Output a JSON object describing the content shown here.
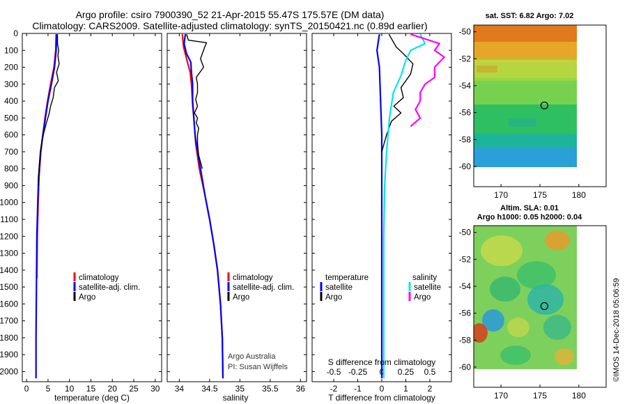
{
  "title_line1": "Argo profile: csiro 7900390_52 21-Apr-2015 55.47S 175.57E (DM data)",
  "title_line2": "Climatology: CARS2009. Satellite-adjusted climatology: synTS_20150421.nc (0.89d earlier)",
  "colors": {
    "climatology": "#ff0000",
    "satellite": "#0000ff",
    "argo": "#000000",
    "salinity_satellite": "#00e5ee",
    "salinity_argo": "#ff00ff"
  },
  "chart_data": [
    {
      "type": "line",
      "name": "temperature",
      "xlabel": "temperature (deg C)",
      "ylabel": "",
      "xlim": [
        -1,
        31.5
      ],
      "ylim": [
        2060,
        0
      ],
      "xticks": [
        0,
        5,
        10,
        15,
        20,
        25,
        30
      ],
      "yticks": [
        0,
        100,
        200,
        300,
        400,
        500,
        600,
        700,
        800,
        900,
        1000,
        1100,
        1200,
        1300,
        1400,
        1500,
        1600,
        1700,
        1800,
        1900,
        2000
      ],
      "legend": [
        "climatology",
        "satellite-adj. clim.",
        "Argo"
      ],
      "series": [
        {
          "name": "climatology",
          "color": "#ff0000",
          "points": [
            [
              6.9,
              5
            ],
            [
              6.8,
              100
            ],
            [
              6.4,
              200
            ],
            [
              5.6,
              300
            ],
            [
              4.9,
              400
            ],
            [
              4.3,
              500
            ],
            [
              3.8,
              600
            ],
            [
              3.3,
              700
            ],
            [
              2.9,
              850
            ],
            [
              2.7,
              1000
            ],
            [
              2.5,
              1200
            ],
            [
              2.4,
              1450
            ]
          ]
        },
        {
          "name": "satellite-adj. clim.",
          "color": "#0000ff",
          "points": [
            [
              7.0,
              5
            ],
            [
              6.9,
              100
            ],
            [
              6.5,
              200
            ],
            [
              5.8,
              300
            ],
            [
              5.0,
              400
            ],
            [
              4.4,
              500
            ],
            [
              3.8,
              600
            ],
            [
              3.3,
              700
            ],
            [
              2.8,
              850
            ],
            [
              2.6,
              1000
            ],
            [
              2.4,
              1200
            ],
            [
              2.3,
              1500
            ],
            [
              2.2,
              1800
            ],
            [
              2.2,
              2040
            ]
          ]
        },
        {
          "name": "Argo",
          "color": "#000000",
          "points": [
            [
              7.2,
              5
            ],
            [
              7.2,
              60
            ],
            [
              7.5,
              100
            ],
            [
              7.3,
              130
            ],
            [
              7.6,
              180
            ],
            [
              7.0,
              230
            ],
            [
              7.4,
              280
            ],
            [
              6.5,
              320
            ],
            [
              6.2,
              380
            ],
            [
              5.6,
              430
            ],
            [
              5.2,
              480
            ],
            [
              4.6,
              530
            ],
            [
              4.3,
              560
            ],
            [
              3.9,
              600
            ],
            [
              3.5,
              650
            ],
            [
              3.2,
              700
            ],
            [
              2.9,
              800
            ],
            [
              2.7,
              900
            ]
          ]
        }
      ]
    },
    {
      "type": "line",
      "name": "salinity",
      "xlabel": "salinity",
      "xlim": [
        33.8,
        36.1
      ],
      "ylim": [
        2060,
        0
      ],
      "xticks": [
        34,
        34.5,
        35,
        35.5,
        36
      ],
      "xtick_labels": [
        "34",
        "34.5",
        "35",
        "35.5",
        "36"
      ],
      "legend": [
        "climatology",
        "satellite-adj. clim.",
        "Argo"
      ],
      "series": [
        {
          "name": "climatology",
          "color": "#ff0000",
          "points": [
            [
              34.05,
              5
            ],
            [
              34.07,
              80
            ],
            [
              34.12,
              150
            ],
            [
              34.18,
              230
            ],
            [
              34.2,
              300
            ],
            [
              34.22,
              420
            ],
            [
              34.25,
              550
            ],
            [
              34.27,
              650
            ],
            [
              34.33,
              800
            ],
            [
              34.42,
              950
            ],
            [
              34.5,
              1100
            ],
            [
              34.57,
              1250
            ],
            [
              34.63,
              1400
            ],
            [
              34.68,
              1600
            ],
            [
              34.71,
              1800
            ],
            [
              34.72,
              2040
            ]
          ]
        },
        {
          "name": "satellite-adj. clim.",
          "color": "#0000ff",
          "points": [
            [
              34.1,
              5
            ],
            [
              34.08,
              60
            ],
            [
              34.12,
              120
            ],
            [
              34.19,
              170
            ],
            [
              34.2,
              230
            ],
            [
              34.22,
              300
            ],
            [
              34.22,
              400
            ],
            [
              34.24,
              500
            ],
            [
              34.26,
              600
            ],
            [
              34.3,
              700
            ],
            [
              34.35,
              800
            ],
            [
              34.42,
              950
            ],
            [
              34.5,
              1100
            ],
            [
              34.57,
              1250
            ],
            [
              34.63,
              1400
            ],
            [
              34.68,
              1600
            ],
            [
              34.71,
              1800
            ],
            [
              34.72,
              2040
            ]
          ]
        },
        {
          "name": "Argo",
          "color": "#000000",
          "points": [
            [
              34.12,
              5
            ],
            [
              34.15,
              40
            ],
            [
              34.45,
              55
            ],
            [
              34.42,
              80
            ],
            [
              34.38,
              120
            ],
            [
              34.35,
              150
            ],
            [
              34.4,
              200
            ],
            [
              34.28,
              260
            ],
            [
              34.3,
              300
            ],
            [
              34.3,
              350
            ],
            [
              34.27,
              390
            ],
            [
              34.3,
              430
            ],
            [
              34.25,
              470
            ],
            [
              34.3,
              500
            ],
            [
              34.28,
              530
            ],
            [
              34.32,
              560
            ],
            [
              34.3,
              600
            ],
            [
              34.3,
              650
            ],
            [
              34.32,
              720
            ],
            [
              34.38,
              800
            ]
          ]
        }
      ]
    },
    {
      "type": "line",
      "name": "differences",
      "xlabel": "T difference from climatology",
      "xlabel_top": "S difference from climatology",
      "xlim": [
        -2.9,
        2.9
      ],
      "ylim": [
        2060,
        0
      ],
      "xticks": [
        -2,
        -1,
        0,
        1,
        2
      ],
      "top_ticks": [
        -0.5,
        -0.25,
        0,
        0.25,
        0.5
      ],
      "top_tick_labels": [
        "-0.5",
        "-0.25",
        "0",
        "0.25",
        "0.5"
      ],
      "legend_headers": [
        "temperature",
        "salinity"
      ],
      "legend_temperature": [
        "satellite",
        "Argo"
      ],
      "legend_salinity": [
        "satellite",
        "Argo"
      ],
      "series": [
        {
          "name": "T satellite",
          "color": "#0000ff",
          "points": [
            [
              -0.1,
              5
            ],
            [
              -0.2,
              100
            ],
            [
              -0.1,
              200
            ],
            [
              -0.05,
              400
            ],
            [
              0,
              600
            ],
            [
              0,
              800
            ],
            [
              0,
              1000
            ],
            [
              0,
              1400
            ],
            [
              0,
              2040
            ]
          ]
        },
        {
          "name": "T Argo",
          "color": "#000000",
          "points": [
            [
              0.3,
              5
            ],
            [
              0.6,
              80
            ],
            [
              0.9,
              120
            ],
            [
              1.3,
              180
            ],
            [
              1.2,
              240
            ],
            [
              0.8,
              320
            ],
            [
              0.9,
              380
            ],
            [
              0.5,
              430
            ],
            [
              0.8,
              470
            ],
            [
              0.4,
              520
            ],
            [
              0.3,
              560
            ],
            [
              0.2,
              600
            ],
            [
              0.1,
              650
            ],
            [
              0,
              700
            ]
          ]
        },
        {
          "name": "S satellite",
          "color": "#00e5ee",
          "points": [
            [
              0.4,
              5
            ],
            [
              0.45,
              60
            ],
            [
              0.3,
              100
            ],
            [
              0.25,
              160
            ],
            [
              0.2,
              250
            ],
            [
              0.12,
              350
            ],
            [
              0.08,
              500
            ],
            [
              0.05,
              700
            ],
            [
              0.03,
              900
            ],
            [
              0.02,
              1200
            ],
            [
              0.02,
              1600
            ],
            [
              0.02,
              2040
            ]
          ]
        },
        {
          "name": "S Argo",
          "color": "#ff00ff",
          "points": [
            [
              0.3,
              5
            ],
            [
              0.6,
              60
            ],
            [
              0.55,
              100
            ],
            [
              0.65,
              140
            ],
            [
              0.55,
              200
            ],
            [
              0.55,
              260
            ],
            [
              0.45,
              300
            ],
            [
              0.4,
              350
            ],
            [
              0.4,
              400
            ],
            [
              0.35,
              450
            ],
            [
              0.4,
              500
            ],
            [
              0.3,
              550
            ]
          ]
        }
      ]
    },
    {
      "type": "heatmap",
      "name": "sst_map",
      "title": "sat. SST: 6.82 Argo: 7.02",
      "xlim": [
        166.5,
        183.5
      ],
      "ylim": [
        -61.5,
        -49.5
      ],
      "xticks": [
        170,
        175,
        180
      ],
      "yticks": [
        -50,
        -52,
        -54,
        -56,
        -58,
        -60
      ],
      "argo_position": [
        175.57,
        -55.47
      ]
    },
    {
      "type": "heatmap",
      "name": "sla_map",
      "title_line1": "Altim. SLA: 0.01",
      "title_line2": "Argo h1000: 0.05 h2000: 0.04",
      "xlim": [
        166.5,
        183.5
      ],
      "ylim": [
        -61.5,
        -49.5
      ],
      "xticks": [
        170,
        175,
        180
      ],
      "yticks": [
        -50,
        -52,
        -54,
        -56,
        -58,
        -60
      ],
      "argo_position": [
        175.57,
        -55.47
      ]
    }
  ],
  "credit_argo": "Argo Australia",
  "credit_pi": "PI: Susan Wijffels",
  "timestamp": "©IMOS 14-Dec-2018 05:06:59"
}
